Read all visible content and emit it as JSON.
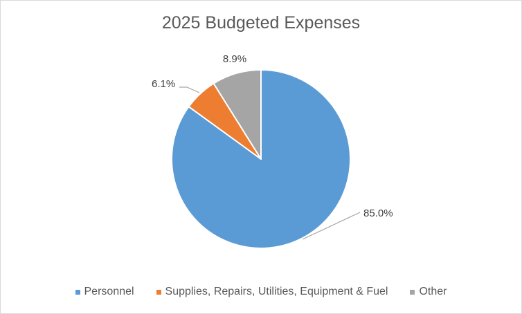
{
  "chart_data": {
    "type": "pie",
    "title": "2025 Budgeted Expenses",
    "categories": [
      "Personnel",
      "Supplies, Repairs, Utilities, Equipment & Fuel",
      "Other"
    ],
    "values": [
      85.0,
      6.1,
      8.9
    ],
    "labels": [
      "85.0%",
      "6.1%",
      "8.9%"
    ],
    "colors": [
      "#5b9bd5",
      "#ed7d31",
      "#a5a5a5"
    ],
    "legend_position": "bottom",
    "start": "12 o'clock",
    "direction": "clockwise"
  }
}
